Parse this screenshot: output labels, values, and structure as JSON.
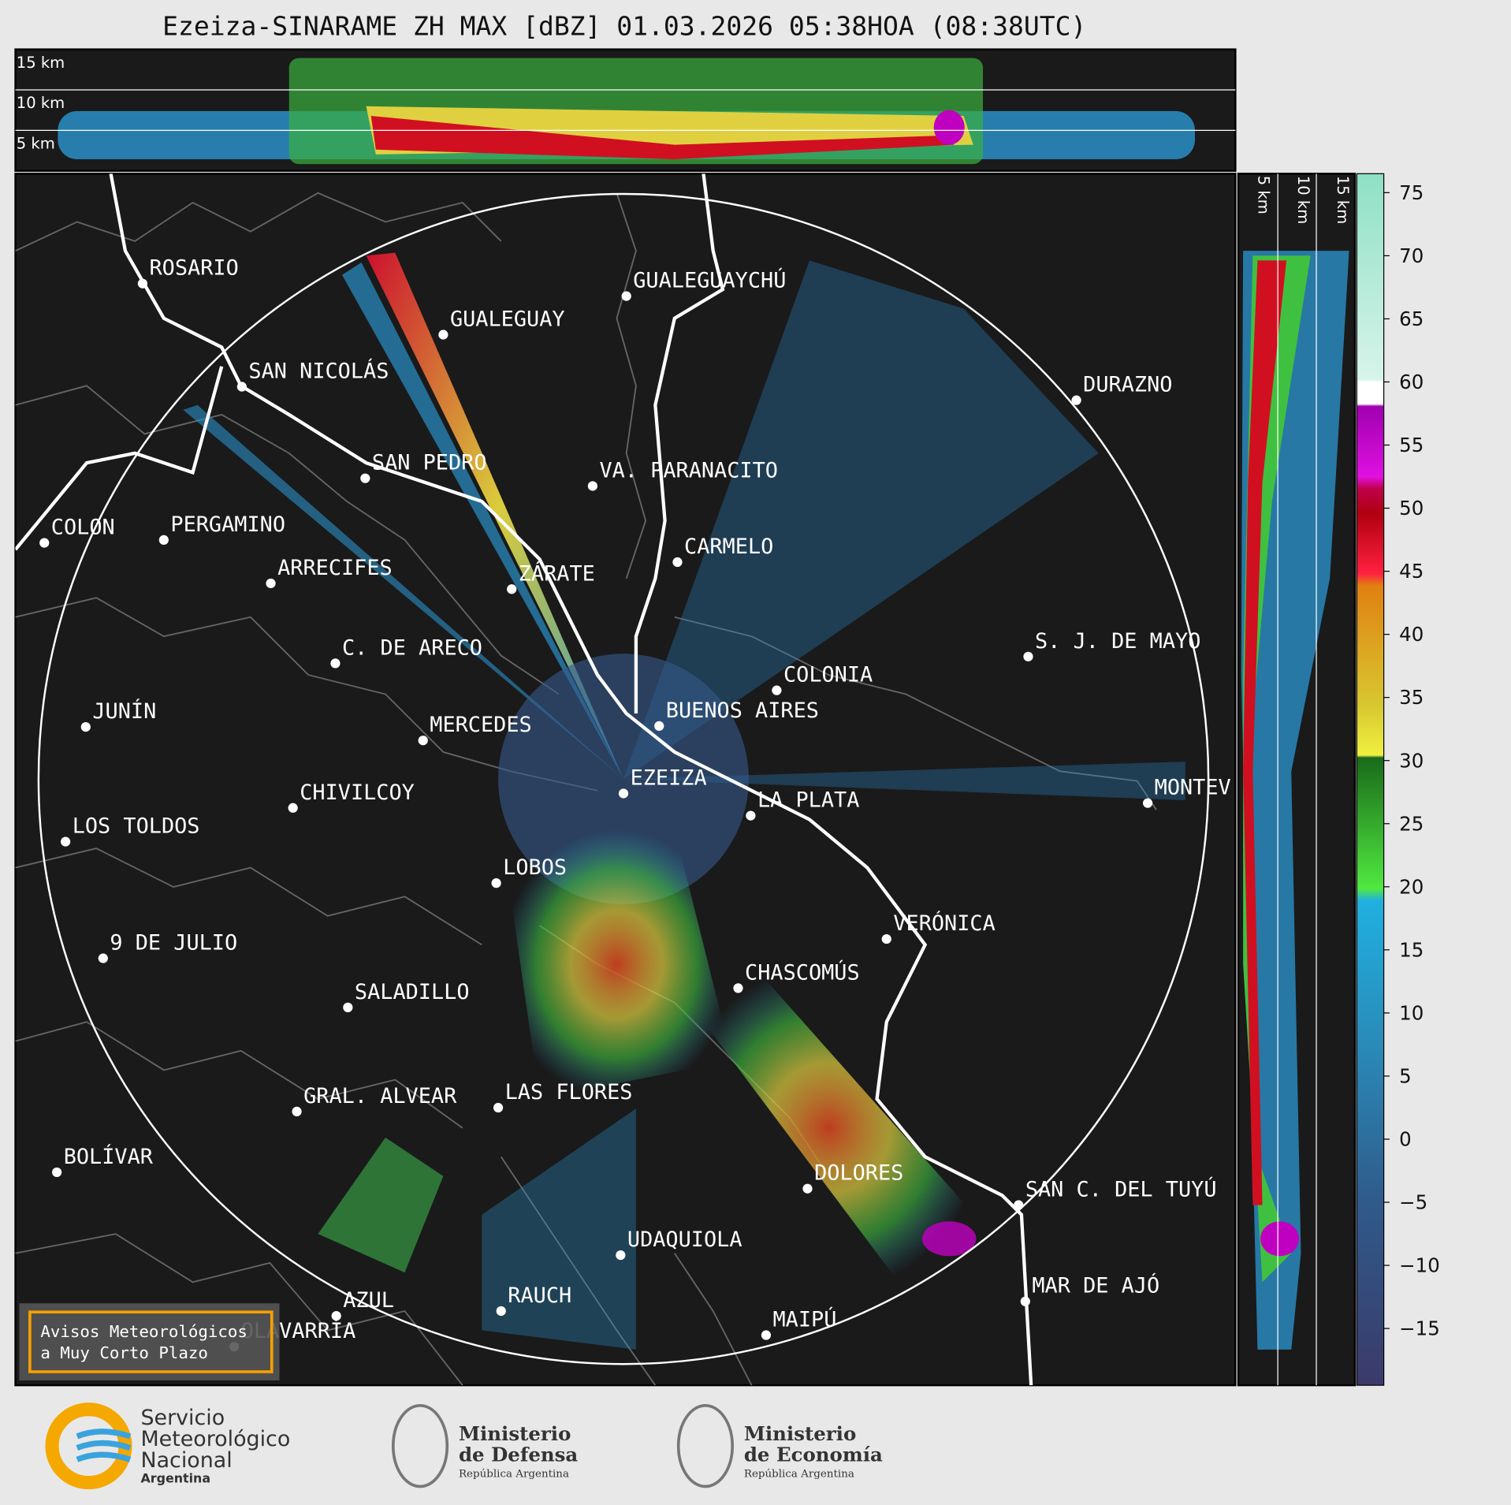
{
  "header": {
    "title": "Ezeiza-SINARAME ZH MAX [dBZ] 01.03.2026 05:38HOA (08:38UTC)"
  },
  "top_panel": {
    "labels": [
      "15 km",
      "10 km",
      "5 km"
    ]
  },
  "side_panel": {
    "labels": [
      "5 km",
      "10 km",
      "15 km"
    ]
  },
  "cities": [
    "ROSARIO",
    "GUALEGUAYCHÚ",
    "GUALEGUAY",
    "SAN NICOLÁS",
    "DURAZNO",
    "SAN PEDRO",
    "VA. PARANACITO",
    "COLON",
    "PERGAMINO",
    "CARMELO",
    "ARRECIFES",
    "ZÁRATE",
    "S. J. DE MAYO",
    "C. DE ARECO",
    "COLONIA",
    "BUENOS AIRES",
    "JUNÍN",
    "MERCEDES",
    "EZEIZA",
    "CHIVILCOY",
    "MONTEV",
    "LA PLATA",
    "LOS TOLDOS",
    "LOBOS",
    "VERÓNICA",
    "9 DE JULIO",
    "CHASCOMÚS",
    "SALADILLO",
    "GRAL. ALVEAR",
    "LAS FLORES",
    "BOLÍVAR",
    "DOLORES",
    "SAN C. DEL TUYÚ",
    "UDAQUIOLA",
    "MAR DE AJÓ",
    "RAUCH",
    "AZUL",
    "MAIPÚ",
    "OLAVARRÍA"
  ],
  "notice": {
    "lines": [
      "Avisos Meteorológicos",
      "a Muy Corto Plazo"
    ]
  },
  "colorbar": {
    "range": [
      -19.5,
      76.5
    ],
    "ticks": [
      75,
      70,
      65,
      60,
      55,
      50,
      45,
      40,
      35,
      30,
      25,
      20,
      15,
      10,
      5,
      0,
      {
        "value": -5,
        "label": "−5"
      },
      {
        "value": -10,
        "label": "−10"
      },
      {
        "value": -15,
        "label": "−15"
      }
    ]
  },
  "logos": {
    "smn": [
      "Servicio",
      "Meteorológico",
      "Nacional",
      "Argentina"
    ],
    "defensa": [
      "Ministerio",
      "de Defensa",
      "República Argentina"
    ],
    "economia": [
      "Ministerio",
      "de Economía",
      "República Argentina"
    ]
  }
}
